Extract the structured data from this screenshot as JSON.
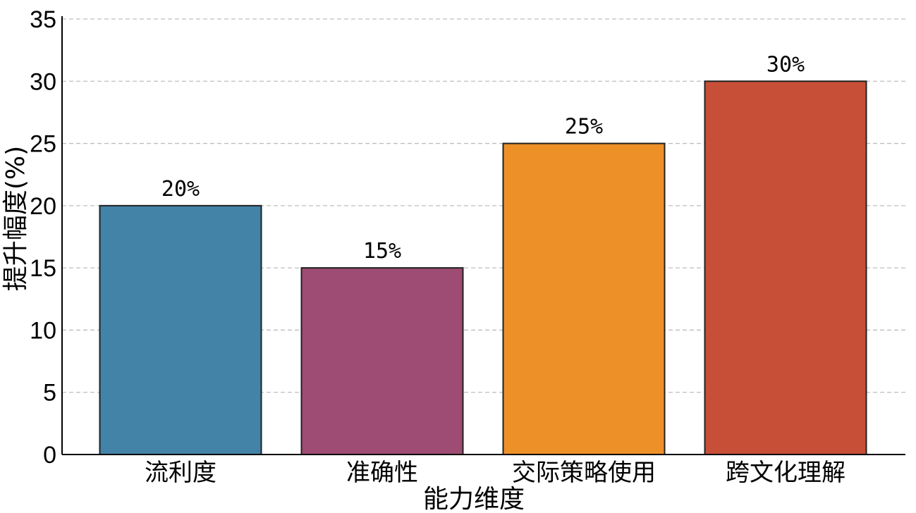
{
  "chart_data": {
    "type": "bar",
    "categories": [
      "流利度",
      "准确性",
      "交际策略使用",
      "跨文化理解"
    ],
    "values": [
      20,
      15,
      25,
      30
    ],
    "value_labels": [
      "20%",
      "15%",
      "25%",
      "30%"
    ],
    "colors": [
      "#4383a8",
      "#9e4c73",
      "#ee9028",
      "#c84f37"
    ],
    "xlabel": "能力维度",
    "ylabel": "提升幅度(%)",
    "ylim": [
      0,
      35
    ],
    "yticks": [
      "0",
      "5",
      "10",
      "15",
      "20",
      "25",
      "30",
      "35"
    ],
    "grid": true,
    "legend": null
  }
}
